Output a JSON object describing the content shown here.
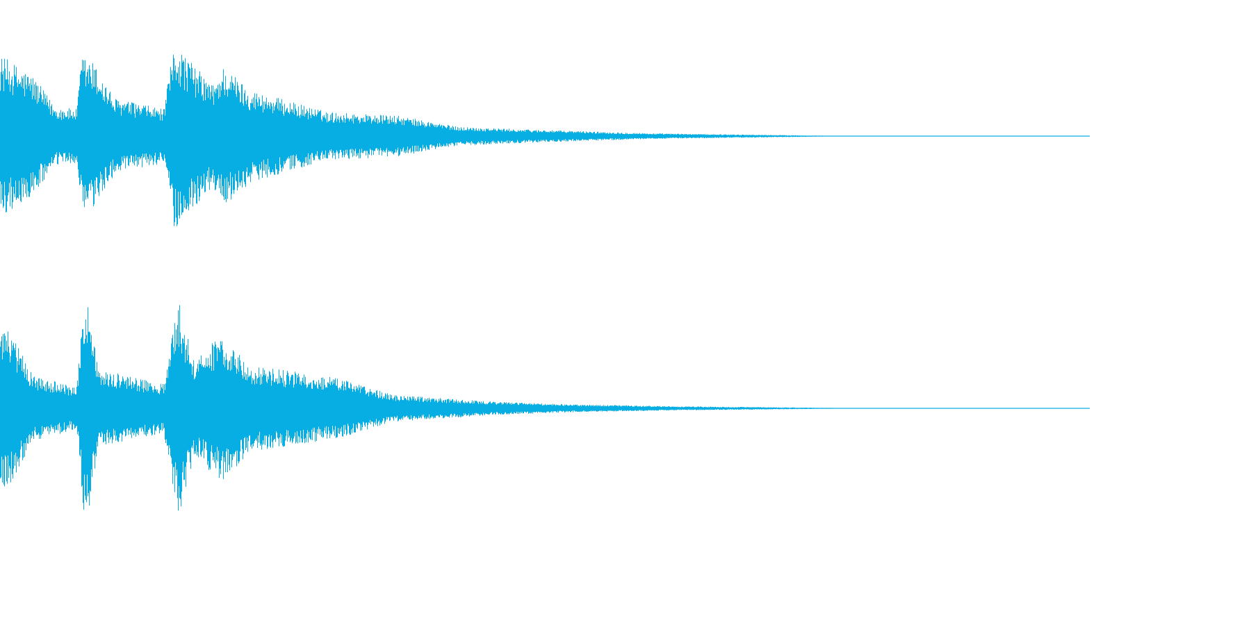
{
  "waveform": {
    "color": "#06AEE3",
    "background": "#FFFFFF",
    "channel_count": 2,
    "channels": [
      {
        "id": "channel-1",
        "envelope_peaks": [
          {
            "t": 0.0,
            "amp": 0.6
          },
          {
            "t": 0.01,
            "amp": 0.55
          },
          {
            "t": 0.03,
            "amp": 0.45
          },
          {
            "t": 0.05,
            "amp": 0.22
          },
          {
            "t": 0.07,
            "amp": 0.2
          },
          {
            "t": 0.075,
            "amp": 0.6
          },
          {
            "t": 0.085,
            "amp": 0.55
          },
          {
            "t": 0.105,
            "amp": 0.28
          },
          {
            "t": 0.15,
            "amp": 0.2
          },
          {
            "t": 0.16,
            "amp": 0.7
          },
          {
            "t": 0.175,
            "amp": 0.55
          },
          {
            "t": 0.195,
            "amp": 0.38
          },
          {
            "t": 0.205,
            "amp": 0.52
          },
          {
            "t": 0.23,
            "amp": 0.34
          },
          {
            "t": 0.3,
            "amp": 0.18
          },
          {
            "t": 0.365,
            "amp": 0.15
          },
          {
            "t": 0.42,
            "amp": 0.07
          },
          {
            "t": 0.48,
            "amp": 0.05
          },
          {
            "t": 0.6,
            "amp": 0.02
          },
          {
            "t": 0.76,
            "amp": 0.003
          },
          {
            "t": 1.0,
            "amp": 0.0
          }
        ]
      },
      {
        "id": "channel-2",
        "envelope_peaks": [
          {
            "t": 0.0,
            "amp": 0.62
          },
          {
            "t": 0.01,
            "amp": 0.55
          },
          {
            "t": 0.03,
            "amp": 0.25
          },
          {
            "t": 0.07,
            "amp": 0.15
          },
          {
            "t": 0.078,
            "amp": 0.9
          },
          {
            "t": 0.09,
            "amp": 0.3
          },
          {
            "t": 0.112,
            "amp": 0.25
          },
          {
            "t": 0.15,
            "amp": 0.18
          },
          {
            "t": 0.163,
            "amp": 0.82
          },
          {
            "t": 0.178,
            "amp": 0.35
          },
          {
            "t": 0.203,
            "amp": 0.55
          },
          {
            "t": 0.23,
            "amp": 0.32
          },
          {
            "t": 0.312,
            "amp": 0.22
          },
          {
            "t": 0.36,
            "amp": 0.1
          },
          {
            "t": 0.45,
            "amp": 0.05
          },
          {
            "t": 0.52,
            "amp": 0.03
          },
          {
            "t": 0.62,
            "amp": 0.015
          },
          {
            "t": 0.77,
            "amp": 0.003
          },
          {
            "t": 1.0,
            "amp": 0.0
          }
        ]
      }
    ]
  }
}
